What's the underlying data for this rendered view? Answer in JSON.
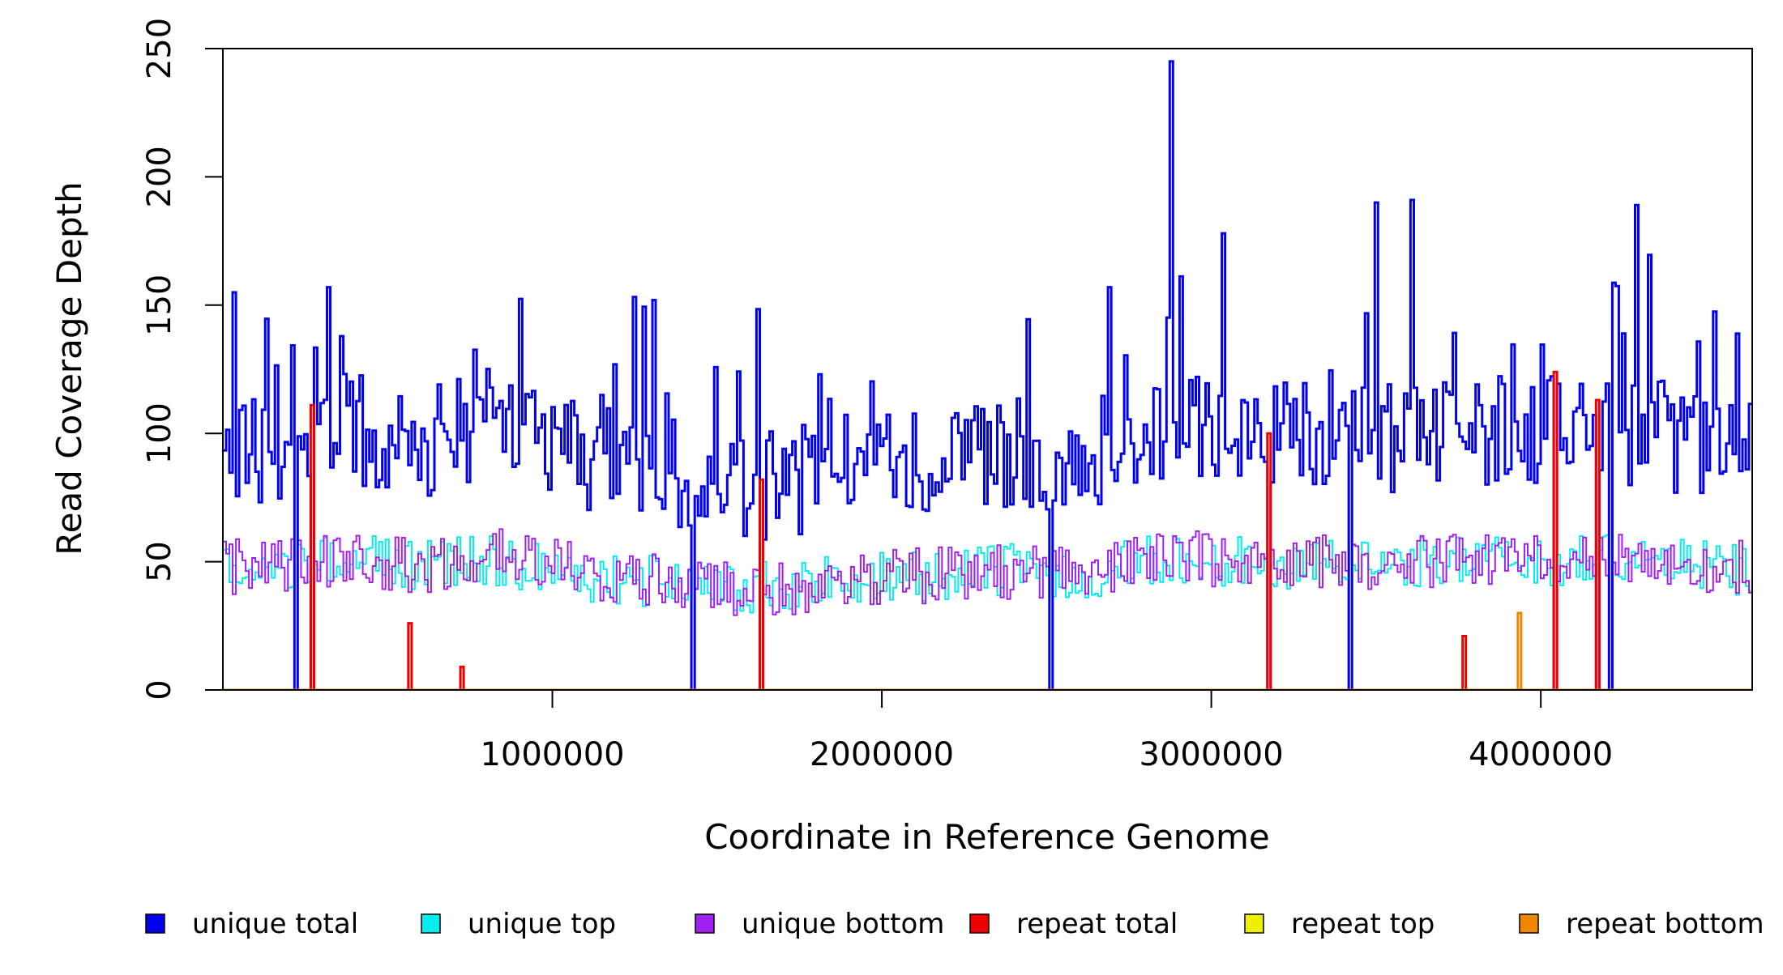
{
  "chart_data": {
    "type": "line",
    "title": "",
    "xlabel": "Coordinate in Reference Genome",
    "ylabel": "Read Coverage Depth",
    "xlim": [
      0,
      4641652
    ],
    "ylim": [
      0,
      250
    ],
    "xticks": [
      1000000,
      2000000,
      3000000,
      4000000
    ],
    "xtick_labels": [
      "1000000",
      "2000000",
      "3000000",
      "4000000"
    ],
    "yticks": [
      0,
      50,
      100,
      150,
      200,
      250
    ],
    "ytick_labels": [
      "0",
      "50",
      "100",
      "150",
      "200",
      "250"
    ],
    "grid": false,
    "legend": {
      "position": "bottom",
      "entries": [
        {
          "label": "unique total",
          "color": "#0000ee"
        },
        {
          "label": "unique top",
          "color": "#00eeee"
        },
        {
          "label": "unique bottom",
          "color": "#a020f0"
        },
        {
          "label": "repeat total",
          "color": "#ee0000"
        },
        {
          "label": "repeat top",
          "color": "#eeee00"
        },
        {
          "label": "repeat bottom",
          "color": "#ee8800"
        }
      ]
    },
    "series": [
      {
        "name": "unique total",
        "color": "#0000ee",
        "x": [
          0,
          200000,
          400000,
          600000,
          800000,
          1000000,
          1200000,
          1400000,
          1600000,
          1800000,
          2000000,
          2200000,
          2400000,
          2600000,
          2800000,
          3000000,
          3200000,
          3400000,
          3600000,
          3800000,
          4000000,
          4200000,
          4400000,
          4600000
        ],
        "y": [
          88,
          97,
          102,
          96,
          104,
          95,
          87,
          85,
          78,
          83,
          88,
          90,
          93,
          89,
          104,
          102,
          98,
          100,
          98,
          102,
          100,
          103,
          98,
          95
        ]
      },
      {
        "name": "unique top",
        "color": "#00eeee",
        "x": [
          0,
          200000,
          400000,
          600000,
          800000,
          1000000,
          1200000,
          1400000,
          1600000,
          1800000,
          2000000,
          2200000,
          2400000,
          2600000,
          2800000,
          3000000,
          3200000,
          3400000,
          3600000,
          3800000,
          4000000,
          4200000,
          4400000,
          4600000
        ],
        "y": [
          46,
          48,
          52,
          48,
          51,
          46,
          43,
          42,
          40,
          42,
          44,
          45,
          47,
          45,
          50,
          51,
          48,
          50,
          49,
          52,
          48,
          52,
          50,
          47
        ]
      },
      {
        "name": "unique bottom",
        "color": "#a020f0",
        "x": [
          0,
          200000,
          400000,
          600000,
          800000,
          1000000,
          1200000,
          1400000,
          1600000,
          1800000,
          2000000,
          2200000,
          2400000,
          2600000,
          2800000,
          3000000,
          3200000,
          3400000,
          3600000,
          3800000,
          4000000,
          4200000,
          4400000,
          4600000
        ],
        "y": [
          48,
          49,
          50,
          48,
          53,
          49,
          44,
          43,
          38,
          41,
          44,
          45,
          46,
          44,
          54,
          51,
          50,
          50,
          49,
          50,
          52,
          51,
          48,
          48
        ]
      },
      {
        "name": "repeat total",
        "color": "#ee0000",
        "x": [
          0,
          200000,
          400000,
          600000,
          800000,
          1000000,
          1200000,
          1400000,
          1600000,
          1800000,
          2000000,
          2200000,
          2400000,
          2600000,
          2800000,
          3000000,
          3200000,
          3400000,
          3600000,
          3800000,
          4000000,
          4200000,
          4400000,
          4600000
        ],
        "y": [
          0,
          0,
          0,
          0,
          0,
          0,
          0,
          0,
          0,
          0,
          0,
          0,
          0,
          0,
          0,
          0,
          0,
          0,
          0,
          0,
          0,
          0,
          0,
          0
        ]
      },
      {
        "name": "repeat top",
        "color": "#eeee00",
        "x": [
          0,
          200000,
          400000,
          600000,
          800000,
          1000000,
          1200000,
          1400000,
          1600000,
          1800000,
          2000000,
          2200000,
          2400000,
          2600000,
          2800000,
          3000000,
          3200000,
          3400000,
          3600000,
          3800000,
          4000000,
          4200000,
          4400000,
          4600000
        ],
        "y": [
          0,
          0,
          0,
          0,
          0,
          0,
          0,
          0,
          0,
          0,
          0,
          0,
          0,
          0,
          0,
          0,
          0,
          0,
          0,
          0,
          0,
          0,
          0,
          0
        ]
      },
      {
        "name": "repeat bottom",
        "color": "#ee8800",
        "x": [
          0,
          200000,
          400000,
          600000,
          800000,
          1000000,
          1200000,
          1400000,
          1600000,
          1800000,
          2000000,
          2200000,
          2400000,
          2600000,
          2800000,
          3000000,
          3200000,
          3400000,
          3600000,
          3800000,
          4000000,
          4200000,
          4400000,
          4600000
        ],
        "y": [
          0,
          0,
          0,
          0,
          0,
          0,
          0,
          0,
          0,
          0,
          0,
          0,
          0,
          0,
          0,
          0,
          0,
          0,
          0,
          0,
          0,
          0,
          0,
          0
        ]
      }
    ],
    "annotations": [
      {
        "label": "unique total peak",
        "x": 2880000,
        "y": 245
      },
      {
        "label": "unique total peak",
        "x": 3500000,
        "y": 190
      },
      {
        "label": "unique total peak",
        "x": 3610000,
        "y": 191
      },
      {
        "label": "unique total peak",
        "x": 4290000,
        "y": 189
      },
      {
        "label": "unique total peak",
        "x": 3040000,
        "y": 178
      },
      {
        "label": "unique total peak",
        "x": 320000,
        "y": 157
      },
      {
        "label": "unique total peak",
        "x": 30000,
        "y": 155
      },
      {
        "label": "unique total peak",
        "x": 1310000,
        "y": 152
      },
      {
        "label": "unique total peak",
        "x": 2690000,
        "y": 157
      },
      {
        "label": "unique total dip",
        "x": 220000,
        "y": 0
      },
      {
        "label": "unique total dip",
        "x": 270000,
        "y": 0
      },
      {
        "label": "unique total dip",
        "x": 1430000,
        "y": 0
      },
      {
        "label": "unique total dip",
        "x": 1630000,
        "y": 0
      },
      {
        "label": "unique total dip",
        "x": 2510000,
        "y": 0
      },
      {
        "label": "unique total dip",
        "x": 3180000,
        "y": 0
      },
      {
        "label": "unique total dip",
        "x": 3420000,
        "y": 0
      },
      {
        "label": "unique total dip",
        "x": 4040000,
        "y": 0
      },
      {
        "label": "unique total dip",
        "x": 4170000,
        "y": 0
      },
      {
        "label": "unique total dip",
        "x": 4210000,
        "y": 0
      },
      {
        "label": "repeat total spike",
        "x": 270000,
        "y": 111
      },
      {
        "label": "repeat total spike",
        "x": 1630000,
        "y": 82
      },
      {
        "label": "repeat total spike",
        "x": 3180000,
        "y": 100
      },
      {
        "label": "repeat total spike",
        "x": 4040000,
        "y": 124
      },
      {
        "label": "repeat total spike",
        "x": 4170000,
        "y": 113
      },
      {
        "label": "repeat total spike",
        "x": 570000,
        "y": 26
      },
      {
        "label": "repeat total spike",
        "x": 730000,
        "y": 9
      },
      {
        "label": "repeat total spike",
        "x": 3770000,
        "y": 21
      },
      {
        "label": "repeat bottom spike",
        "x": 3940000,
        "y": 30
      }
    ]
  }
}
